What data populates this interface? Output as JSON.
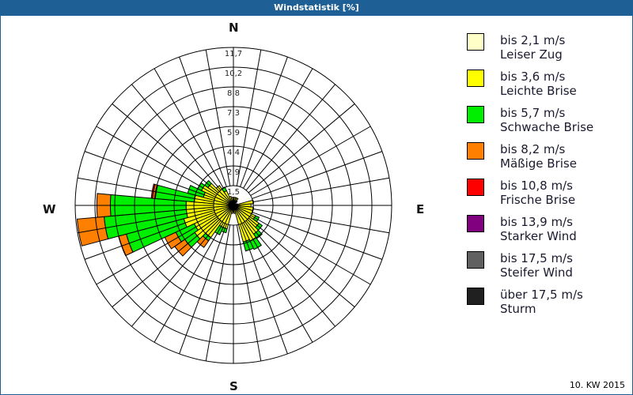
{
  "title": "Windstatistik [%]",
  "footer": "10. KW 2015",
  "compass": {
    "n": "N",
    "e": "E",
    "s": "S",
    "w": "W"
  },
  "legend": [
    {
      "range": "bis 2,1 m/s",
      "name": "Leiser Zug",
      "color": "#ffffc8"
    },
    {
      "range": "bis 3,6 m/s",
      "name": "Leichte Brise",
      "color": "#ffff00"
    },
    {
      "range": "bis 5,7 m/s",
      "name": "Schwache Brise",
      "color": "#00ee00"
    },
    {
      "range": "bis 8,2 m/s",
      "name": "Mäßige Brise",
      "color": "#ff8000"
    },
    {
      "range": "bis 10,8 m/s",
      "name": "Frische Brise",
      "color": "#ff0000"
    },
    {
      "range": "bis 13,9 m/s",
      "name": "Starker Wind",
      "color": "#800080"
    },
    {
      "range": "bis 17,5 m/s",
      "name": "Steifer Wind",
      "color": "#606060"
    },
    {
      "range": "über 17,5 m/s",
      "name": "Sturm",
      "color": "#202020"
    }
  ],
  "chart_data": {
    "type": "polar-stacked-bar (wind rose)",
    "title": "Windstatistik [%]",
    "radial_ticks": [
      "1,5",
      "2,9",
      "4,4",
      "5,9",
      "7,3",
      "8,8",
      "10,2",
      "11,7"
    ],
    "radial_max": 11.7,
    "direction_step_deg": 10,
    "directions_deg": [
      0,
      10,
      20,
      30,
      40,
      50,
      60,
      70,
      80,
      90,
      100,
      110,
      120,
      130,
      140,
      150,
      160,
      170,
      180,
      190,
      200,
      210,
      220,
      230,
      240,
      250,
      260,
      270,
      280,
      290,
      300,
      310,
      320,
      330,
      340,
      350
    ],
    "series": [
      {
        "name": "bis 2,1 m/s Leiser Zug",
        "values": [
          0.3,
          0.3,
          0.3,
          0.3,
          0.2,
          0.1,
          0.1,
          0.1,
          0.3,
          0.3,
          0.3,
          0.3,
          0.3,
          0.3,
          0.3,
          0.3,
          0.3,
          0.2,
          0.2,
          0.2,
          0.3,
          0.3,
          0.3,
          0.3,
          0.3,
          0.3,
          0.3,
          0.3,
          0.3,
          0.3,
          0.3,
          0.3,
          0.3,
          0.3,
          0.3,
          0.3
        ]
      },
      {
        "name": "bis 3,6 m/s Leichte Brise",
        "values": [
          0.3,
          0.3,
          0.3,
          0.3,
          0.2,
          0.1,
          0.1,
          0.2,
          1.2,
          1.0,
          1.2,
          1.2,
          1.5,
          2.0,
          2.3,
          2.6,
          2.5,
          0.4,
          0.3,
          0.4,
          1.5,
          1.5,
          2.6,
          3.2,
          2.9,
          3.5,
          3.2,
          3.2,
          2.6,
          2.0,
          2.3,
          2.0,
          1.5,
          0.9,
          0.4,
          0.3
        ]
      },
      {
        "name": "bis 5,7 m/s Schwache Brise",
        "values": [
          0,
          0,
          0,
          0,
          0,
          0,
          0,
          0,
          0,
          0,
          0,
          0,
          0.3,
          0.3,
          0.4,
          0.7,
          0.7,
          0,
          0,
          0,
          0.3,
          0.6,
          0.3,
          0.9,
          1.5,
          4.4,
          6.1,
          5.6,
          2.9,
          1.2,
          0.3,
          0.3,
          0,
          0.3,
          0,
          0
        ]
      },
      {
        "name": "bis 8,2 m/s Mäßige Brise",
        "values": [
          0,
          0,
          0,
          0,
          0,
          0,
          0,
          0,
          0,
          0,
          0,
          0,
          0,
          0,
          0,
          0,
          0,
          0,
          0,
          0,
          0,
          0,
          0.6,
          0.9,
          0.9,
          0.6,
          2.0,
          1.0,
          0.2,
          0,
          0,
          0,
          0,
          0,
          0,
          0
        ]
      },
      {
        "name": "bis 10,8 m/s Frische Brise",
        "values": [
          0,
          0,
          0,
          0,
          0,
          0,
          0,
          0,
          0,
          0,
          0,
          0,
          0,
          0,
          0,
          0,
          0,
          0,
          0,
          0,
          0,
          0,
          0,
          0,
          0,
          0,
          0,
          0,
          0.1,
          0,
          0,
          0,
          0,
          0,
          0,
          0
        ]
      },
      {
        "name": "bis 13,9 m/s Starker Wind",
        "values": [
          0,
          0,
          0,
          0,
          0,
          0,
          0,
          0,
          0,
          0,
          0,
          0,
          0,
          0,
          0,
          0,
          0,
          0,
          0,
          0,
          0,
          0,
          0,
          0,
          0,
          0,
          0,
          0,
          0,
          0,
          0,
          0,
          0,
          0,
          0,
          0
        ]
      },
      {
        "name": "bis 17,5 m/s Steifer Wind",
        "values": [
          0,
          0,
          0,
          0,
          0,
          0,
          0,
          0,
          0,
          0,
          0,
          0,
          0,
          0,
          0,
          0,
          0,
          0,
          0,
          0,
          0,
          0,
          0,
          0,
          0,
          0,
          0,
          0,
          0,
          0,
          0,
          0,
          0,
          0,
          0,
          0
        ]
      },
      {
        "name": "über 17,5 m/s Sturm",
        "values": [
          0,
          0,
          0,
          0,
          0,
          0,
          0,
          0,
          0,
          0,
          0,
          0,
          0,
          0,
          0,
          0,
          0,
          0,
          0,
          0,
          0,
          0,
          0,
          0,
          0,
          0,
          0,
          0,
          0,
          0,
          0,
          0,
          0,
          0,
          0,
          0
        ]
      }
    ],
    "legend_position": "right",
    "grid": true
  }
}
